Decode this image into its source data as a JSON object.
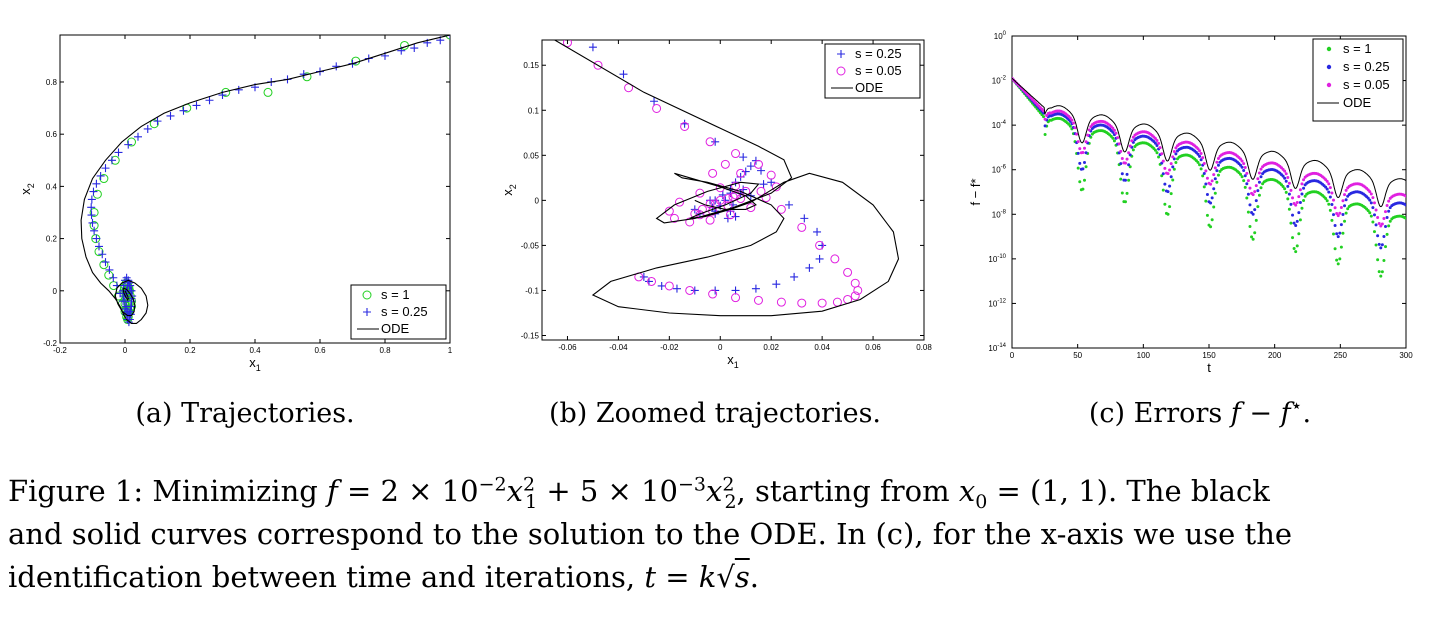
{
  "chart_data": [
    {
      "id": "a",
      "type": "scatter",
      "xlabel": "x",
      "xlabel_sub": "1",
      "ylabel": "x",
      "ylabel_sub": "2",
      "xlim": [
        -0.2,
        1
      ],
      "ylim": [
        -0.2,
        0.98
      ],
      "xticks": [
        -0.2,
        0,
        0.2,
        0.4,
        0.6,
        0.8,
        1
      ],
      "xtick_labels": [
        "-0.2",
        "0",
        "0.2",
        "0.4",
        "0.6",
        "0.8",
        "1"
      ],
      "yticks": [
        -0.2,
        0,
        0.2,
        0.4,
        0.6,
        0.8
      ],
      "ytick_labels": [
        "-0.2",
        "0",
        "0.2",
        "0.4",
        "0.6",
        "0.8"
      ],
      "legend": [
        "s = 1",
        "s = 0.25",
        "ODE"
      ],
      "legend_position": "bottom-right",
      "series": [
        {
          "name": "s = 1",
          "marker": "circle",
          "color": "#22d022",
          "x": [
            1.0,
            0.86,
            0.71,
            0.56,
            0.44,
            0.31,
            0.19,
            0.09,
            0.02,
            -0.03,
            -0.065,
            -0.085,
            -0.095,
            -0.095,
            -0.09,
            -0.08,
            -0.065,
            -0.05,
            -0.035,
            -0.02,
            -0.008,
            0.0,
            0.005,
            0.008,
            0.01,
            0.012,
            0.01,
            0.006,
            0.002,
            -0.002,
            0.0,
            0.004,
            0.008,
            0.012,
            0.016,
            0.02,
            0.02,
            0.015,
            0.01,
            0.005,
            0.0,
            0.002,
            0.006,
            0.01,
            0.012,
            0.014
          ],
          "y": [
            0.98,
            0.94,
            0.88,
            0.82,
            0.76,
            0.76,
            0.7,
            0.64,
            0.57,
            0.5,
            0.43,
            0.37,
            0.3,
            0.25,
            0.2,
            0.15,
            0.1,
            0.06,
            0.02,
            -0.02,
            -0.05,
            -0.08,
            -0.1,
            -0.11,
            -0.1,
            -0.08,
            -0.05,
            -0.02,
            0.0,
            0.01,
            0.02,
            0.03,
            0.02,
            0.0,
            -0.02,
            -0.04,
            -0.06,
            -0.07,
            -0.08,
            -0.07,
            -0.05,
            -0.03,
            -0.01,
            0.0,
            0.01,
            0.0
          ]
        },
        {
          "name": "s = 0.25",
          "marker": "plus",
          "color": "#2828e0",
          "x": [
            1.0,
            0.97,
            0.93,
            0.89,
            0.85,
            0.8,
            0.75,
            0.7,
            0.65,
            0.6,
            0.55,
            0.5,
            0.45,
            0.4,
            0.35,
            0.3,
            0.26,
            0.22,
            0.18,
            0.14,
            0.1,
            0.07,
            0.04,
            0.01,
            -0.02,
            -0.04,
            -0.06,
            -0.075,
            -0.088,
            -0.097,
            -0.102,
            -0.104,
            -0.103,
            -0.1,
            -0.095,
            -0.088,
            -0.08,
            -0.07,
            -0.06,
            -0.048,
            -0.036,
            -0.025,
            -0.015,
            -0.006,
            0.0,
            0.004,
            0.008,
            0.012,
            0.015,
            0.018,
            0.02,
            0.02,
            0.018,
            0.014,
            0.01,
            0.005,
            0.0,
            -0.004,
            -0.006,
            -0.004,
            0.0,
            0.004,
            0.008,
            0.012,
            0.015,
            0.018,
            0.02,
            0.022,
            0.02,
            0.016,
            0.012,
            0.008,
            0.005,
            0.003
          ],
          "y": [
            0.98,
            0.96,
            0.95,
            0.93,
            0.92,
            0.9,
            0.89,
            0.87,
            0.86,
            0.84,
            0.83,
            0.81,
            0.8,
            0.78,
            0.77,
            0.75,
            0.73,
            0.71,
            0.69,
            0.67,
            0.65,
            0.62,
            0.59,
            0.56,
            0.53,
            0.5,
            0.47,
            0.44,
            0.41,
            0.38,
            0.35,
            0.32,
            0.29,
            0.26,
            0.23,
            0.2,
            0.17,
            0.14,
            0.11,
            0.08,
            0.05,
            0.02,
            -0.01,
            -0.04,
            -0.07,
            -0.09,
            -0.11,
            -0.12,
            -0.11,
            -0.09,
            -0.06,
            -0.03,
            0.0,
            0.02,
            0.04,
            0.05,
            0.04,
            0.02,
            0.0,
            -0.02,
            -0.04,
            -0.06,
            -0.08,
            -0.09,
            -0.08,
            -0.06,
            -0.04,
            -0.02,
            0.0,
            0.02,
            0.03,
            0.02,
            0.0,
            -0.01
          ]
        },
        {
          "name": "ODE",
          "marker": "line",
          "color": "#000000",
          "x": [
            1.0,
            0.9,
            0.8,
            0.7,
            0.6,
            0.5,
            0.4,
            0.3,
            0.2,
            0.12,
            0.05,
            -0.01,
            -0.06,
            -0.1,
            -0.125,
            -0.135,
            -0.133,
            -0.12,
            -0.1,
            -0.075,
            -0.05,
            -0.03,
            -0.015,
            -0.005,
            0.005,
            0.02,
            0.035,
            0.05,
            0.065,
            0.07,
            0.065,
            0.05,
            0.03,
            0.01,
            -0.01,
            -0.025,
            -0.03,
            -0.022,
            -0.008,
            0.008,
            0.02,
            0.028,
            0.03,
            0.025,
            0.015,
            0.005,
            -0.003,
            -0.006,
            -0.003,
            0.003,
            0.008,
            0.01,
            0.008,
            0.004,
            0.0
          ],
          "y": [
            0.98,
            0.95,
            0.91,
            0.87,
            0.84,
            0.81,
            0.79,
            0.76,
            0.72,
            0.68,
            0.63,
            0.57,
            0.5,
            0.43,
            0.35,
            0.27,
            0.2,
            0.13,
            0.07,
            0.03,
            0.0,
            -0.03,
            -0.06,
            -0.09,
            -0.11,
            -0.125,
            -0.125,
            -0.11,
            -0.085,
            -0.055,
            -0.02,
            0.01,
            0.03,
            0.04,
            0.03,
            0.01,
            -0.02,
            -0.05,
            -0.08,
            -0.095,
            -0.095,
            -0.08,
            -0.055,
            -0.03,
            -0.01,
            0.005,
            0.01,
            0.005,
            -0.01,
            -0.025,
            -0.035,
            -0.03,
            -0.02,
            -0.01,
            0.0
          ]
        }
      ]
    },
    {
      "id": "b",
      "type": "scatter",
      "xlabel": "x",
      "xlabel_sub": "1",
      "ylabel": "x",
      "ylabel_sub": "2",
      "xlim": [
        -0.07,
        0.08
      ],
      "ylim": [
        -0.155,
        0.178
      ],
      "xticks": [
        -0.06,
        -0.04,
        -0.02,
        0,
        0.02,
        0.04,
        0.06,
        0.08
      ],
      "xtick_labels": [
        "-0.06",
        "-0.04",
        "-0.02",
        "0",
        "0.02",
        "0.04",
        "0.06",
        "0.08"
      ],
      "yticks": [
        -0.15,
        -0.1,
        -0.05,
        0,
        0.05,
        0.1,
        0.15
      ],
      "ytick_labels": [
        "-0.15",
        "-0.1",
        "-0.05",
        "0",
        "0.05",
        "0.1",
        "0.15"
      ],
      "legend": [
        "s = 0.25",
        "s = 0.05",
        "ODE"
      ],
      "legend_position": "top-right",
      "series": [
        {
          "name": "s = 0.25",
          "marker": "plus",
          "color": "#2828e0",
          "x": [
            -0.05,
            -0.038,
            -0.026,
            -0.014,
            -0.002,
            0.009,
            0.016,
            0.017,
            0.012,
            0.005,
            -0.002,
            -0.008,
            -0.01,
            -0.004,
            0.004,
            0.009,
            0.008,
            0.002,
            -0.003,
            -0.002,
            0.003,
            0.006,
            0.004,
            0.0,
            -0.002,
            0.001,
            0.004,
            0.006,
            0.008,
            0.01,
            0.012,
            0.014,
            0.02,
            0.027,
            0.033,
            0.038,
            0.04,
            0.039,
            0.035,
            0.029,
            0.022,
            0.014,
            0.006,
            -0.002,
            -0.01,
            -0.017,
            -0.023,
            -0.028,
            -0.03
          ],
          "y": [
            0.17,
            0.14,
            0.11,
            0.085,
            0.065,
            0.048,
            0.033,
            0.018,
            0.005,
            -0.005,
            -0.012,
            -0.015,
            -0.01,
            0.0,
            0.008,
            0.012,
            0.008,
            0.0,
            -0.008,
            -0.015,
            -0.02,
            -0.018,
            -0.012,
            -0.006,
            0.0,
            0.006,
            0.012,
            0.02,
            0.026,
            0.032,
            0.038,
            0.044,
            0.02,
            -0.005,
            -0.02,
            -0.035,
            -0.05,
            -0.065,
            -0.075,
            -0.085,
            -0.093,
            -0.098,
            -0.1,
            -0.1,
            -0.1,
            -0.098,
            -0.095,
            -0.09,
            -0.085
          ]
        },
        {
          "name": "s = 0.05",
          "marker": "circle",
          "color": "#e020e0",
          "x": [
            -0.06,
            -0.048,
            -0.036,
            -0.025,
            -0.014,
            -0.004,
            0.006,
            0.015,
            0.02,
            0.022,
            0.018,
            0.012,
            0.004,
            -0.004,
            -0.012,
            -0.018,
            -0.02,
            -0.016,
            -0.008,
            0.0,
            0.006,
            0.01,
            0.008,
            0.003,
            -0.003,
            -0.008,
            -0.01,
            -0.007,
            -0.002,
            0.003,
            0.006,
            0.005,
            0.0,
            -0.004,
            -0.003,
            0.002,
            0.008,
            0.016,
            0.024,
            0.032,
            0.039,
            0.045,
            0.05,
            0.053,
            0.054,
            0.053,
            0.05,
            0.046,
            0.04,
            0.032,
            0.024,
            0.015,
            0.006,
            -0.003,
            -0.012,
            -0.02,
            -0.027,
            -0.032
          ],
          "y": [
            0.175,
            0.15,
            0.125,
            0.102,
            0.082,
            0.065,
            0.052,
            0.04,
            0.028,
            0.015,
            0.003,
            -0.008,
            -0.016,
            -0.022,
            -0.024,
            -0.02,
            -0.012,
            -0.002,
            0.008,
            0.014,
            0.016,
            0.01,
            0.002,
            -0.006,
            -0.012,
            -0.016,
            -0.015,
            -0.01,
            -0.004,
            0.002,
            0.006,
            0.004,
            0.0,
            -0.004,
            0.03,
            0.04,
            0.03,
            0.01,
            -0.01,
            -0.03,
            -0.05,
            -0.065,
            -0.08,
            -0.092,
            -0.1,
            -0.106,
            -0.11,
            -0.113,
            -0.114,
            -0.114,
            -0.113,
            -0.111,
            -0.108,
            -0.104,
            -0.1,
            -0.095,
            -0.09,
            -0.085
          ]
        },
        {
          "name": "ODE",
          "marker": "line",
          "color": "#000000",
          "x": [
            -0.065,
            -0.03,
            0.0,
            0.015,
            0.025,
            0.028,
            0.02,
            0.005,
            -0.01,
            -0.022,
            -0.025,
            -0.018,
            -0.005,
            0.008,
            0.015,
            0.012,
            0.002,
            -0.008,
            -0.012,
            -0.006,
            0.004,
            0.012,
            0.018,
            0.025,
            0.035,
            0.048,
            0.06,
            0.068,
            0.07,
            0.066,
            0.055,
            0.04,
            0.02,
            0.0,
            -0.02,
            -0.04,
            -0.05,
            -0.043,
            -0.025,
            -0.005,
            0.012,
            0.022,
            0.025,
            0.02,
            0.008,
            -0.005,
            -0.015,
            -0.018,
            -0.012,
            0.0,
            0.01,
            0.014,
            0.01,
            0.002,
            -0.006,
            -0.01
          ],
          "y": [
            0.178,
            0.12,
            0.08,
            0.06,
            0.045,
            0.025,
            0.008,
            -0.008,
            -0.02,
            -0.025,
            -0.02,
            -0.005,
            0.01,
            0.02,
            0.018,
            0.008,
            -0.005,
            -0.015,
            -0.02,
            -0.018,
            -0.01,
            -0.002,
            0.008,
            0.02,
            0.03,
            0.02,
            -0.005,
            -0.035,
            -0.065,
            -0.09,
            -0.11,
            -0.123,
            -0.128,
            -0.128,
            -0.125,
            -0.118,
            -0.105,
            -0.09,
            -0.075,
            -0.063,
            -0.05,
            -0.035,
            -0.02,
            -0.005,
            0.01,
            0.02,
            0.025,
            0.03,
            0.025,
            0.015,
            0.005,
            -0.005,
            -0.01,
            -0.01,
            -0.005,
            0.0
          ]
        }
      ]
    },
    {
      "id": "c",
      "type": "line",
      "xlabel": "t",
      "ylabel": "f − f*",
      "xlim": [
        0,
        300
      ],
      "ylim_exponent": [
        -14,
        0
      ],
      "yscale": "log",
      "xticks": [
        0,
        50,
        100,
        150,
        200,
        250,
        300
      ],
      "xtick_labels": [
        "0",
        "50",
        "100",
        "150",
        "200",
        "250",
        "300"
      ],
      "yticks_exponent": [
        0,
        -2,
        -4,
        -6,
        -8,
        -10,
        -12,
        -14
      ],
      "ytick_base": "10",
      "ytick_exponent_labels": [
        "0",
        "-2",
        "-4",
        "-6",
        "-8",
        "-10",
        "-12",
        "-14"
      ],
      "legend": [
        "s = 1",
        "s = 0.25",
        "s = 0.05",
        "ODE"
      ],
      "legend_position": "top-right",
      "series": [
        {
          "name": "s = 1",
          "color": "#22d022",
          "log10_start": -1.6,
          "log10_envelope_end": -8.3,
          "log10_trough_depth": 2.5,
          "period": 32.5,
          "trough_t": [
            37,
            69,
            101,
            134,
            166,
            199,
            232,
            264,
            297
          ]
        },
        {
          "name": "s = 0.25",
          "color": "#2828e0",
          "log10_start": -1.6,
          "log10_envelope_end": -7.7,
          "log10_trough_depth": 1.8,
          "period": 32.5,
          "trough_t": [
            37,
            69,
            101,
            134,
            166,
            199,
            232,
            264,
            297
          ]
        },
        {
          "name": "s = 0.05",
          "color": "#e020e0",
          "log10_start": -1.6,
          "log10_envelope_end": -7.3,
          "log10_trough_depth": 1.2,
          "period": 32.5,
          "trough_t": [
            37,
            69,
            101,
            134,
            166,
            199,
            232,
            264,
            297
          ]
        },
        {
          "name": "ODE",
          "color": "#000000",
          "log10_start": -1.6,
          "log10_envelope_end": -6.6,
          "log10_trough_depth": 1.0,
          "period": 32.5,
          "trough_t": [
            37,
            69,
            101,
            134,
            166,
            199,
            232,
            264,
            297
          ]
        }
      ]
    }
  ],
  "subcaptions": {
    "a": "(a) Trajectories.",
    "b": "(b) Zoomed trajectories.",
    "c_prefix": "(c) Errors ",
    "c_f1": "f",
    "c_minus": " − ",
    "c_f2": "f",
    "c_star": "⋆",
    "c_suffix": "."
  },
  "caption": {
    "p1": "Figure 1: Minimizing ",
    "f": "f",
    "eq1": " = 2 × 10",
    "exp1": "−2",
    "x1": "x",
    "sq1": "2",
    "s1": "1",
    "eq2": " + 5 × 10",
    "exp2": "−3",
    "x2": "x",
    "sq2": "2",
    "s2": "2",
    "p2": ", starting from ",
    "x0": "x",
    "x0sub": "0",
    "p3": " = (1,  1).  The black",
    "line2": "and solid curves correspond to the solution to the ODE. In (c), for the x-axis we use the",
    "p4": "identification between time and iterations, ",
    "t": "t",
    "eq3": " = ",
    "k": "k",
    "sqrt": "√",
    "s": "s",
    "end": "."
  }
}
